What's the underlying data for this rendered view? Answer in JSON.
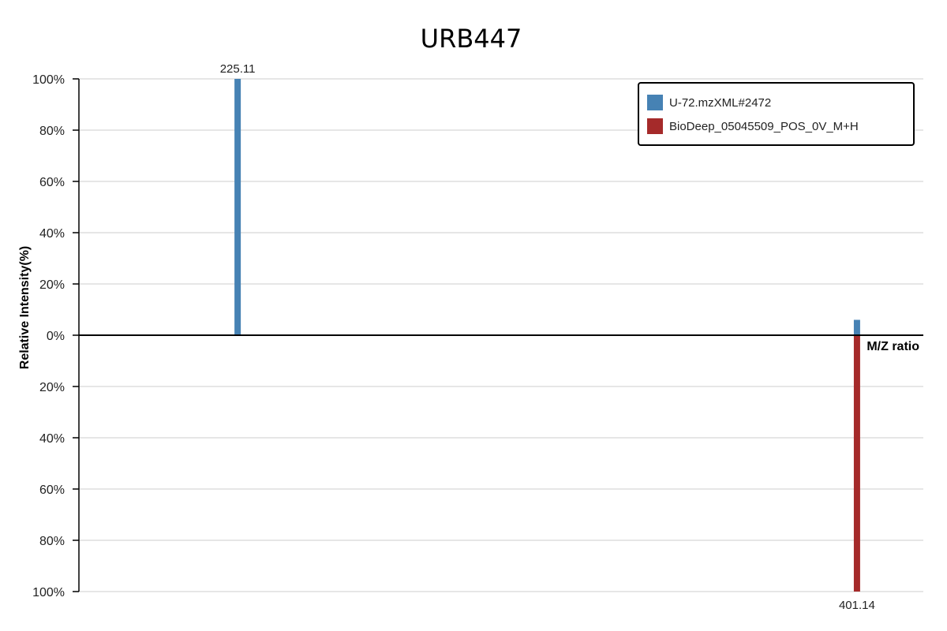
{
  "chart_data": {
    "type": "bar",
    "title": "URB447",
    "xlabel": "M/Z ratio",
    "ylabel": "Relative Intensity(%)",
    "y_ticks_top": [
      "100%",
      "80%",
      "60%",
      "40%",
      "20%",
      "0%"
    ],
    "y_ticks_bottom": [
      "20%",
      "40%",
      "60%",
      "80%",
      "100%"
    ],
    "ylim": [
      -100,
      100
    ],
    "xlim": [
      180,
      420
    ],
    "grid": true,
    "legend_position": "top-right",
    "series": [
      {
        "name": "U-72.mzXML#2472",
        "color": "#4682b4",
        "direction": "up",
        "peaks": [
          {
            "mz": 225.11,
            "intensity": 100,
            "label": "225.11"
          },
          {
            "mz": 401.14,
            "intensity": 6,
            "label": ""
          }
        ]
      },
      {
        "name": "BioDeep_05045509_POS_0V_M+H",
        "color": "#a52a2a",
        "direction": "down",
        "peaks": [
          {
            "mz": 401.14,
            "intensity": 100,
            "label": "401.14"
          }
        ]
      }
    ]
  }
}
